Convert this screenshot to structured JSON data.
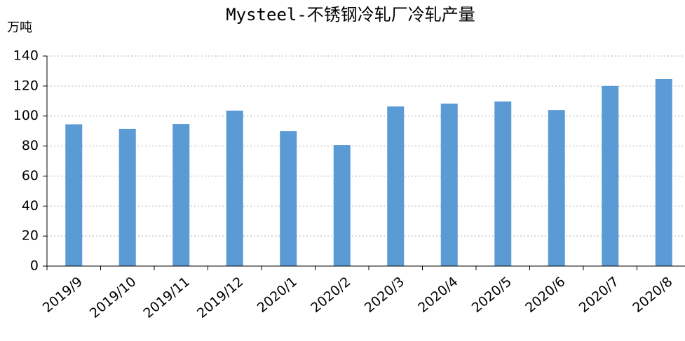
{
  "chart_data": {
    "type": "bar",
    "title": "Mysteel-不锈钢冷轧厂冷轧产量",
    "y_label": "万吨",
    "categories": [
      "2019/9",
      "2019/10",
      "2019/11",
      "2019/12",
      "2020/1",
      "2020/2",
      "2020/3",
      "2020/4",
      "2020/5",
      "2020/6",
      "2020/7",
      "2020/8"
    ],
    "values": [
      94.5,
      91.5,
      94.7,
      103.6,
      90,
      80.7,
      106.4,
      108.3,
      109.7,
      104,
      120,
      124.6
    ],
    "color": "#5b9bd5",
    "ylim": [
      0,
      140
    ],
    "yticks": [
      0,
      20,
      40,
      60,
      80,
      100,
      120,
      140
    ],
    "grid": true
  }
}
